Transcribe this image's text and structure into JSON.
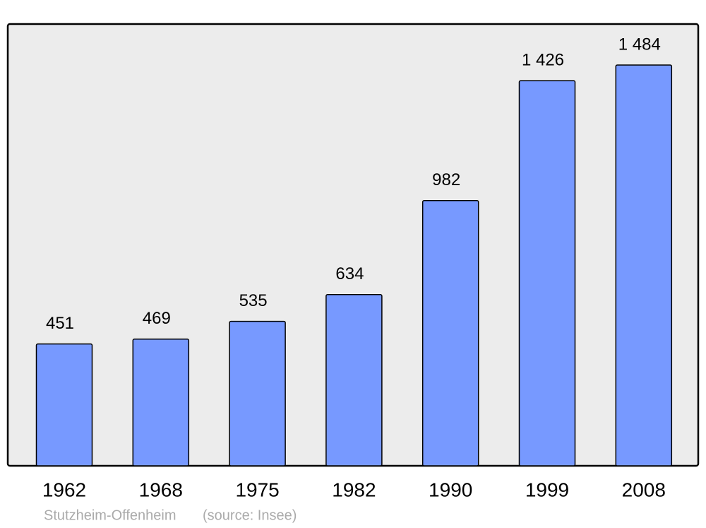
{
  "chart_data": {
    "type": "bar",
    "categories": [
      "1962",
      "1968",
      "1975",
      "1982",
      "1990",
      "1999",
      "2008"
    ],
    "values": [
      451,
      469,
      535,
      634,
      982,
      1426,
      1484
    ],
    "value_labels": [
      "451",
      "469",
      "535",
      "634",
      "982",
      "1 426",
      "1 484"
    ],
    "color": "#7799ff",
    "title": "Stutzheim-Offenheim",
    "source": "(source: Insee)"
  }
}
